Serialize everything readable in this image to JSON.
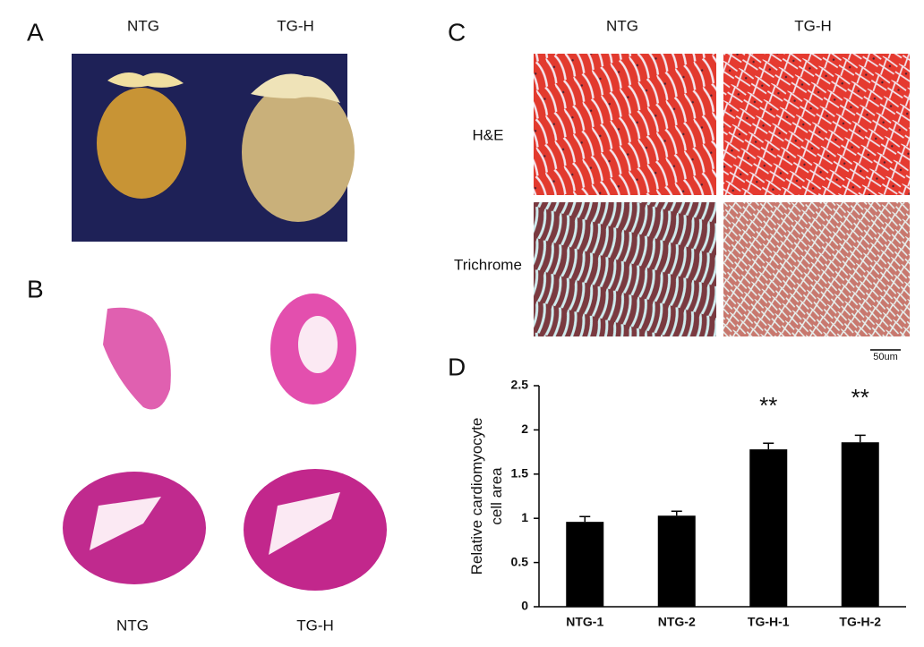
{
  "panel_a": {
    "label": "A",
    "columns": [
      "NTG",
      "TG-H"
    ]
  },
  "panel_b": {
    "label": "B",
    "columns": [
      "NTG",
      "TG-H"
    ]
  },
  "panel_c": {
    "label": "C",
    "columns": [
      "NTG",
      "TG-H"
    ],
    "rows": [
      "H&E",
      "Trichrome"
    ],
    "scale_bar": "50um"
  },
  "panel_d": {
    "label": "D"
  },
  "chart_data": {
    "type": "bar",
    "ylabel": [
      "Relative cardiomyocyte",
      "cell area"
    ],
    "categories": [
      "NTG-1",
      "NTG-2",
      "TG-H-1",
      "TG-H-2"
    ],
    "values": [
      0.96,
      1.03,
      1.78,
      1.86
    ],
    "errors": [
      0.06,
      0.05,
      0.07,
      0.08
    ],
    "annotations": [
      null,
      null,
      "**",
      "**"
    ],
    "color": "#000000",
    "ylim": [
      0,
      2.5
    ],
    "yticks": [
      0,
      0.5,
      1,
      1.5,
      2,
      2.5
    ],
    "grid": false
  }
}
